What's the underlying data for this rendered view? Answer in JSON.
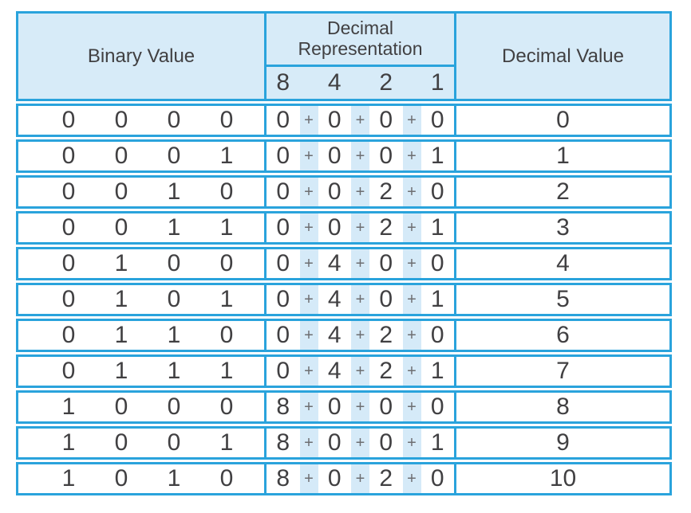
{
  "colors": {
    "border": "#2AA3DC",
    "header_bg": "#D7EBF8",
    "stripe": "#D5EAF8",
    "text": "#414042",
    "plus": "#6D6E71",
    "page_bg": "#FFFFFF"
  },
  "table": {
    "headers": {
      "binary": "Binary Value",
      "expansion_title": "Decimal Representation",
      "place_values": [
        "8",
        "4",
        "2",
        "1"
      ],
      "decimal": "Decimal Value"
    },
    "plus_sign": "+",
    "rows": [
      {
        "binary": [
          "0",
          "0",
          "0",
          "0"
        ],
        "expansion": [
          "0",
          "0",
          "0",
          "0"
        ],
        "decimal": "0"
      },
      {
        "binary": [
          "0",
          "0",
          "0",
          "1"
        ],
        "expansion": [
          "0",
          "0",
          "0",
          "1"
        ],
        "decimal": "1"
      },
      {
        "binary": [
          "0",
          "0",
          "1",
          "0"
        ],
        "expansion": [
          "0",
          "0",
          "2",
          "0"
        ],
        "decimal": "2"
      },
      {
        "binary": [
          "0",
          "0",
          "1",
          "1"
        ],
        "expansion": [
          "0",
          "0",
          "2",
          "1"
        ],
        "decimal": "3"
      },
      {
        "binary": [
          "0",
          "1",
          "0",
          "0"
        ],
        "expansion": [
          "0",
          "4",
          "0",
          "0"
        ],
        "decimal": "4"
      },
      {
        "binary": [
          "0",
          "1",
          "0",
          "1"
        ],
        "expansion": [
          "0",
          "4",
          "0",
          "1"
        ],
        "decimal": "5"
      },
      {
        "binary": [
          "0",
          "1",
          "1",
          "0"
        ],
        "expansion": [
          "0",
          "4",
          "2",
          "0"
        ],
        "decimal": "6"
      },
      {
        "binary": [
          "0",
          "1",
          "1",
          "1"
        ],
        "expansion": [
          "0",
          "4",
          "2",
          "1"
        ],
        "decimal": "7"
      },
      {
        "binary": [
          "1",
          "0",
          "0",
          "0"
        ],
        "expansion": [
          "8",
          "0",
          "0",
          "0"
        ],
        "decimal": "8"
      },
      {
        "binary": [
          "1",
          "0",
          "0",
          "1"
        ],
        "expansion": [
          "8",
          "0",
          "0",
          "1"
        ],
        "decimal": "9"
      },
      {
        "binary": [
          "1",
          "0",
          "1",
          "0"
        ],
        "expansion": [
          "8",
          "0",
          "2",
          "0"
        ],
        "decimal": "10"
      }
    ]
  }
}
